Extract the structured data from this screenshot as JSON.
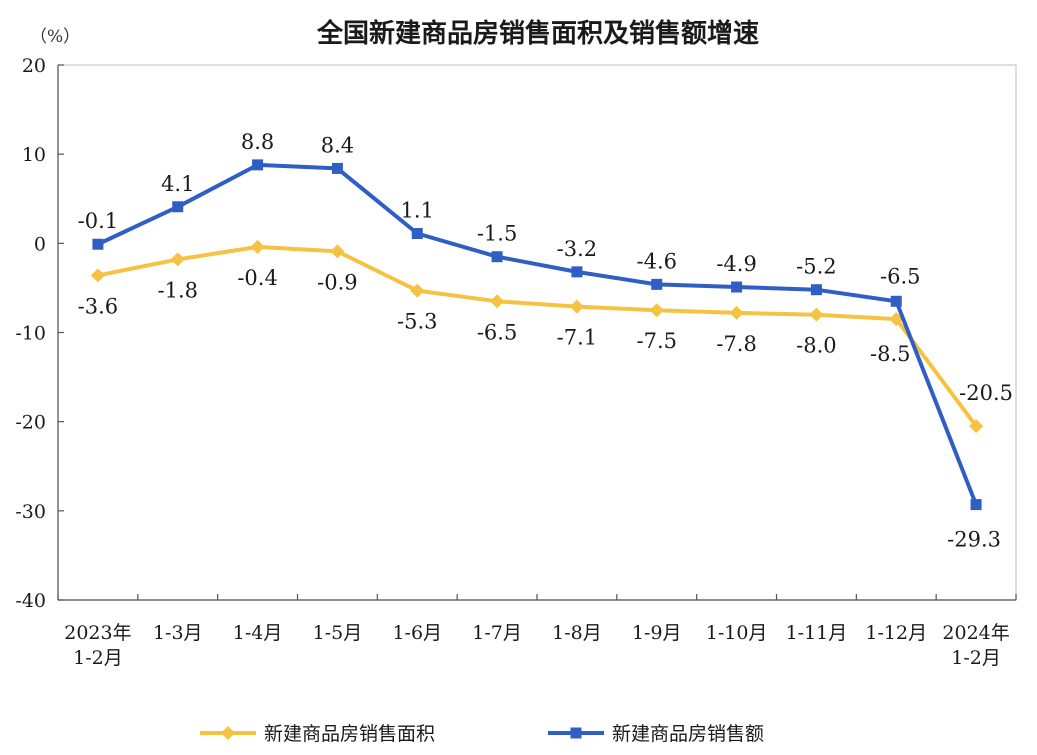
{
  "chart_data": {
    "type": "line",
    "title": "全国新建商品房销售面积及销售额增速",
    "unit_label": "（%）",
    "ylim": [
      -40,
      20
    ],
    "yticks": [
      20,
      10,
      0,
      -10,
      -20,
      -30,
      -40
    ],
    "categories": [
      [
        "2023年",
        "1-2月"
      ],
      [
        "1-3月"
      ],
      [
        "1-4月"
      ],
      [
        "1-5月"
      ],
      [
        "1-6月"
      ],
      [
        "1-7月"
      ],
      [
        "1-8月"
      ],
      [
        "1-9月"
      ],
      [
        "1-10月"
      ],
      [
        "1-11月"
      ],
      [
        "1-12月"
      ],
      [
        "2024年",
        "1-2月"
      ]
    ],
    "series": [
      {
        "name": "新建商品房销售面积",
        "color": "#f5c242",
        "marker": "diamond",
        "values": [
          -3.6,
          -1.8,
          -0.4,
          -0.9,
          -5.3,
          -6.5,
          -7.1,
          -7.5,
          -7.8,
          -8.0,
          -8.5,
          -20.5
        ],
        "labels": [
          "-3.6",
          "-1.8",
          "-0.4",
          "-0.9",
          "-5.3",
          "-6.5",
          "-7.1",
          "-7.5",
          "-7.8",
          "-8.0",
          "-8.5",
          "-20.5"
        ]
      },
      {
        "name": "新建商品房销售额",
        "color": "#2f5ec4",
        "marker": "square",
        "values": [
          -0.1,
          4.1,
          8.8,
          8.4,
          1.1,
          -1.5,
          -3.2,
          -4.6,
          -4.9,
          -5.2,
          -6.5,
          -29.3
        ],
        "labels": [
          "-0.1",
          "4.1",
          "8.8",
          "8.4",
          "1.1",
          "-1.5",
          "-3.2",
          "-4.6",
          "-4.9",
          "-5.2",
          "-6.5",
          "-29.3"
        ]
      }
    ],
    "legend": "bottom"
  }
}
